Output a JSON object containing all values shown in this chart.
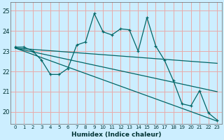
{
  "xlabel": "Humidex (Indice chaleur)",
  "bg_color": "#cceeff",
  "grid_color": "#e8aaaa",
  "line_color": "#006666",
  "ylim": [
    19.4,
    25.4
  ],
  "yticks": [
    20,
    21,
    22,
    23,
    24,
    25
  ],
  "xlim": [
    -0.5,
    23.5
  ],
  "xticks": [
    0,
    1,
    2,
    3,
    4,
    5,
    6,
    7,
    8,
    9,
    10,
    11,
    12,
    13,
    14,
    15,
    16,
    17,
    18,
    19,
    20,
    21,
    22,
    23
  ],
  "main_line": [
    23.2,
    23.2,
    23.0,
    22.55,
    21.85,
    21.85,
    22.15,
    23.3,
    23.45,
    24.85,
    23.95,
    23.8,
    24.1,
    24.05,
    23.0,
    24.65,
    23.25,
    22.55,
    21.55,
    20.4,
    20.3,
    21.05,
    19.95,
    19.6
  ],
  "trend_lines": [
    {
      "x0": 0,
      "y0": 23.15,
      "x1": 23,
      "y1": 22.4
    },
    {
      "x0": 0,
      "y0": 23.15,
      "x1": 23,
      "y1": 21.0
    },
    {
      "x0": 0,
      "y0": 23.15,
      "x1": 23,
      "y1": 19.55
    }
  ]
}
